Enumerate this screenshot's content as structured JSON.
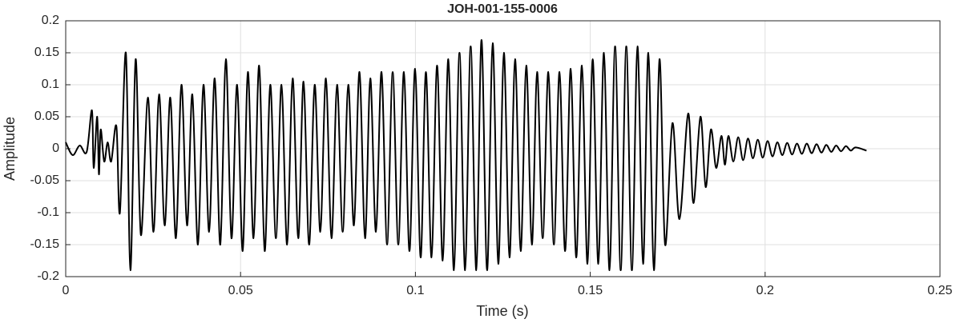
{
  "chart_data": {
    "type": "line",
    "title": "JOH-001-155-0006",
    "xlabel": "Time (s)",
    "ylabel": "Amplitude",
    "xlim": [
      0,
      0.25
    ],
    "xticks": [
      0,
      0.05,
      0.1,
      0.15,
      0.2,
      0.25
    ],
    "ylim": [
      -0.2,
      0.2
    ],
    "yticks": [
      -0.2,
      -0.15,
      -0.1,
      -0.05,
      0,
      0.05,
      0.1,
      0.15,
      0.2
    ],
    "grid": true,
    "color": "#000000",
    "x": [
      0,
      0.002,
      0.004,
      0.006,
      0.0075,
      0.008,
      0.009,
      0.0095,
      0.01,
      0.011,
      0.012,
      0.013,
      0.0145,
      0.0155,
      0.0172,
      0.0185,
      0.02,
      0.0215,
      0.0235,
      0.0251,
      0.0267,
      0.0283,
      0.0299,
      0.0315,
      0.0331,
      0.0347,
      0.0362,
      0.0378,
      0.0394,
      0.041,
      0.0426,
      0.0442,
      0.0458,
      0.0474,
      0.049,
      0.0506,
      0.0521,
      0.0537,
      0.0553,
      0.0569,
      0.0585,
      0.0601,
      0.0617,
      0.0633,
      0.0649,
      0.0665,
      0.068,
      0.0696,
      0.0712,
      0.0728,
      0.0744,
      0.076,
      0.0776,
      0.0792,
      0.0808,
      0.0824,
      0.084,
      0.0856,
      0.0871,
      0.0887,
      0.0903,
      0.0919,
      0.0935,
      0.0951,
      0.0967,
      0.0983,
      0.0999,
      0.1015,
      0.103,
      0.1046,
      0.1062,
      0.1078,
      0.1094,
      0.111,
      0.1126,
      0.1142,
      0.1158,
      0.1174,
      0.1189,
      0.1205,
      0.1221,
      0.1237,
      0.1253,
      0.1269,
      0.1285,
      0.1301,
      0.1317,
      0.1333,
      0.1348,
      0.1364,
      0.138,
      0.1396,
      0.1412,
      0.1428,
      0.1444,
      0.146,
      0.1476,
      0.1492,
      0.1507,
      0.1523,
      0.1539,
      0.1555,
      0.1571,
      0.1587,
      0.1603,
      0.1619,
      0.1635,
      0.1651,
      0.1666,
      0.1682,
      0.1698,
      0.1714,
      0.1735,
      0.1755,
      0.178,
      0.1795,
      0.1815,
      0.183,
      0.1845,
      0.186,
      0.1875,
      0.1885,
      0.1895,
      0.1909,
      0.1923,
      0.1937,
      0.1951,
      0.1965,
      0.1979,
      0.1993,
      0.2007,
      0.2021,
      0.2035,
      0.2049,
      0.2063,
      0.2077,
      0.2091,
      0.2105,
      0.2119,
      0.2133,
      0.2147,
      0.2161,
      0.2175,
      0.2189,
      0.2203,
      0.2217,
      0.2231,
      0.2245,
      0.2259,
      0.229
    ],
    "values": [
      0.01,
      -0.01,
      0.005,
      -0.005,
      0.06,
      -0.03,
      0.05,
      -0.04,
      0.03,
      -0.02,
      0.01,
      -0.02,
      0.035,
      -0.1,
      0.15,
      -0.19,
      0.14,
      -0.135,
      0.08,
      -0.13,
      0.085,
      -0.12,
      0.08,
      -0.14,
      0.1,
      -0.12,
      0.085,
      -0.15,
      0.1,
      -0.13,
      0.11,
      -0.15,
      0.14,
      -0.14,
      0.1,
      -0.16,
      0.12,
      -0.14,
      0.13,
      -0.16,
      0.1,
      -0.14,
      0.1,
      -0.15,
      0.11,
      -0.14,
      0.105,
      -0.15,
      0.1,
      -0.13,
      0.11,
      -0.14,
      0.1,
      -0.13,
      0.1,
      -0.12,
      0.12,
      -0.14,
      0.11,
      -0.13,
      0.12,
      -0.15,
      0.12,
      -0.15,
      0.12,
      -0.16,
      0.125,
      -0.17,
      0.12,
      -0.17,
      0.13,
      -0.175,
      0.14,
      -0.19,
      0.15,
      -0.19,
      0.16,
      -0.19,
      0.17,
      -0.19,
      0.165,
      -0.18,
      0.15,
      -0.17,
      0.14,
      -0.16,
      0.13,
      -0.15,
      0.12,
      -0.14,
      0.12,
      -0.15,
      0.12,
      -0.16,
      0.125,
      -0.17,
      0.13,
      -0.18,
      0.14,
      -0.18,
      0.15,
      -0.19,
      0.16,
      -0.19,
      0.16,
      -0.19,
      0.16,
      -0.18,
      0.15,
      -0.19,
      0.14,
      -0.15,
      0.04,
      -0.11,
      0.055,
      -0.085,
      0.05,
      -0.06,
      0.03,
      -0.03,
      0.02,
      -0.025,
      0.02,
      -0.02,
      0.018,
      -0.018,
      0.016,
      -0.015,
      0.014,
      -0.014,
      0.012,
      -0.012,
      0.01,
      -0.01,
      0.009,
      -0.009,
      0.008,
      -0.008,
      0.008,
      -0.007,
      0.007,
      -0.006,
      0.006,
      -0.005,
      0.005,
      -0.004,
      0.004,
      -0.003,
      0.002,
      -0.003
    ]
  }
}
